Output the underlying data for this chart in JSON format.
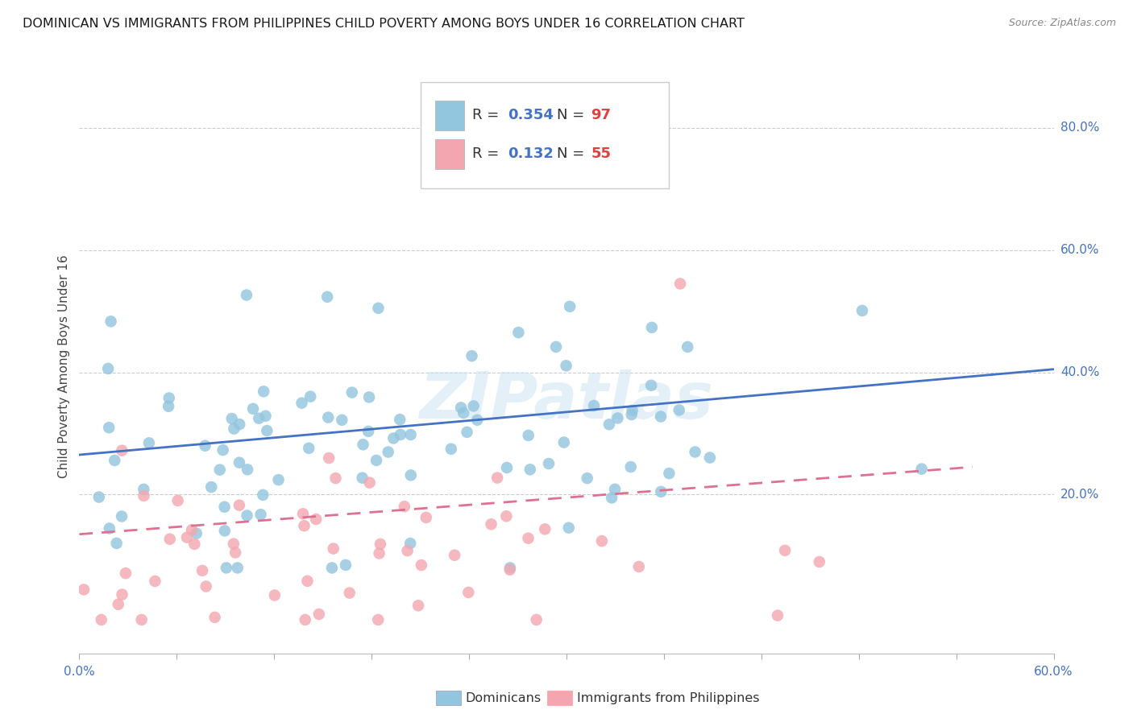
{
  "title": "DOMINICAN VS IMMIGRANTS FROM PHILIPPINES CHILD POVERTY AMONG BOYS UNDER 16 CORRELATION CHART",
  "source": "Source: ZipAtlas.com",
  "ylabel": "Child Poverty Among Boys Under 16",
  "blue_color": "#92c5de",
  "blue_line_color": "#4472c4",
  "pink_color": "#f4a6b0",
  "pink_line_color": "#e07090",
  "blue_r": 0.354,
  "pink_r": 0.132,
  "blue_n": 97,
  "pink_n": 55,
  "xmin": 0.0,
  "xmax": 0.6,
  "ymin": -0.06,
  "ymax": 0.88,
  "watermark": "ZIPatlas",
  "title_fontsize": 11.5,
  "label_fontsize": 11,
  "tick_fontsize": 11,
  "source_fontsize": 9,
  "right_tick_color": "#4472c4",
  "grid_color": "#cccccc",
  "blue_line_y0": 0.265,
  "blue_line_y1": 0.405,
  "pink_line_y0": 0.135,
  "pink_line_y1": 0.245
}
